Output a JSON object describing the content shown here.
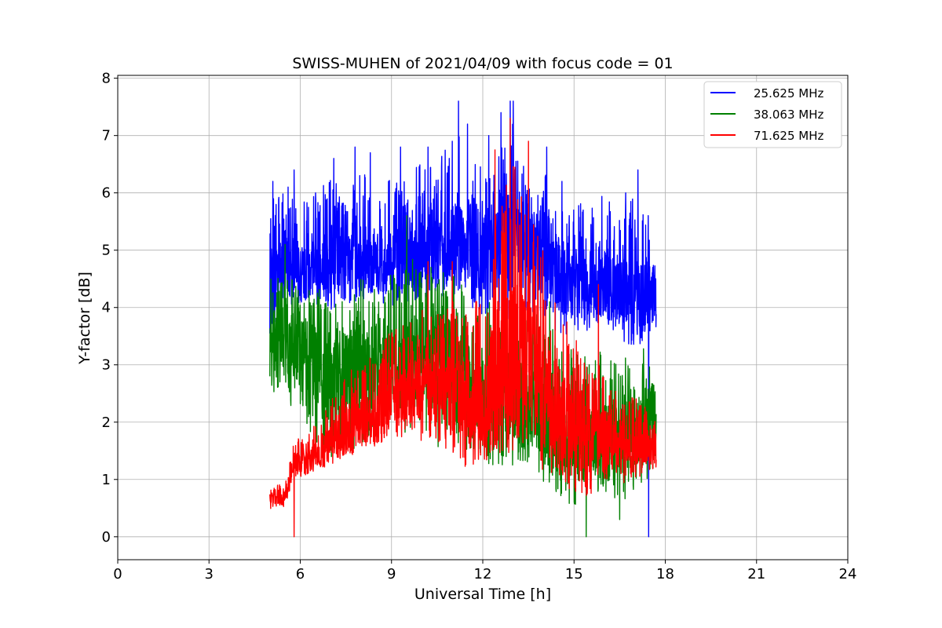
{
  "chart_data": {
    "type": "line",
    "title": "SWISS-MUHEN of 2021/04/09 with focus code = 01",
    "xlabel": "Universal Time [h]",
    "ylabel": "Y-factor [dB]",
    "xlim": [
      0,
      24
    ],
    "ylim": [
      -0.4,
      8.05
    ],
    "xticks": [
      0,
      3,
      6,
      9,
      12,
      15,
      18,
      21,
      24
    ],
    "xtick_labels": [
      "0",
      "3",
      "6",
      "9",
      "12",
      "15",
      "18",
      "21",
      "24"
    ],
    "yticks": [
      0,
      1,
      2,
      3,
      4,
      5,
      6,
      7,
      8
    ],
    "ytick_labels": [
      "0",
      "1",
      "2",
      "3",
      "4",
      "5",
      "6",
      "7",
      "8"
    ],
    "grid": true,
    "legend_position": "top-right",
    "series": [
      {
        "name": "25.625 MHz",
        "color": "#0000ff",
        "x": [
          5.0,
          5.5,
          6.0,
          6.5,
          7.0,
          7.5,
          8.0,
          8.5,
          9.0,
          9.5,
          10.0,
          10.5,
          11.0,
          11.5,
          12.0,
          12.5,
          13.0,
          13.5,
          14.0,
          14.5,
          15.0,
          15.5,
          16.0,
          16.5,
          17.0,
          17.5,
          17.7
        ],
        "y": [
          4.2,
          4.7,
          4.6,
          4.8,
          4.7,
          4.9,
          4.9,
          4.8,
          4.7,
          4.8,
          4.9,
          4.9,
          5.1,
          5.0,
          5.0,
          5.1,
          5.1,
          5.0,
          5.0,
          4.6,
          4.4,
          4.3,
          4.4,
          4.3,
          4.1,
          4.2,
          4.3
        ],
        "low": [
          3.2,
          3.9,
          3.9,
          3.9,
          3.8,
          3.9,
          4.0,
          4.0,
          3.9,
          3.9,
          4.0,
          4.0,
          4.1,
          3.9,
          3.6,
          3.3,
          3.5,
          3.8,
          3.4,
          3.3,
          3.4,
          3.4,
          3.6,
          3.3,
          3.0,
          3.2,
          3.3
        ],
        "high": [
          6.2,
          6.4,
          6.3,
          6.2,
          6.6,
          6.3,
          6.8,
          6.3,
          6.7,
          6.6,
          6.8,
          6.7,
          7.7,
          6.9,
          6.8,
          7.0,
          7.6,
          6.6,
          6.8,
          6.2,
          6.3,
          6.0,
          6.3,
          5.9,
          6.4,
          5.8,
          5.4
        ],
        "spikes": [
          [
            4.9,
            5.7
          ],
          [
            5.1,
            6.2
          ],
          [
            5.6,
            6.1
          ],
          [
            5.8,
            6.4
          ],
          [
            6.5,
            6.0
          ],
          [
            7.1,
            6.6
          ],
          [
            7.8,
            6.8
          ],
          [
            8.3,
            6.7
          ],
          [
            8.9,
            6.2
          ],
          [
            9.3,
            6.8
          ],
          [
            10.2,
            6.8
          ],
          [
            10.9,
            6.6
          ],
          [
            11.0,
            6.9
          ],
          [
            11.2,
            7.6
          ],
          [
            11.5,
            7.2
          ],
          [
            12.2,
            7.0
          ],
          [
            12.6,
            7.4
          ],
          [
            12.9,
            7.6
          ],
          [
            13.0,
            7.6
          ],
          [
            14.1,
            6.8
          ],
          [
            14.6,
            6.2
          ],
          [
            15.3,
            5.7
          ],
          [
            16.1,
            5.6
          ],
          [
            16.7,
            6.0
          ],
          [
            17.1,
            6.4
          ],
          [
            17.45,
            0.0
          ]
        ]
      },
      {
        "name": "38.063 MHz",
        "color": "#008000",
        "x": [
          5.0,
          5.5,
          6.0,
          6.5,
          7.0,
          7.5,
          8.0,
          8.5,
          9.0,
          9.5,
          10.0,
          10.5,
          11.0,
          11.5,
          12.0,
          12.5,
          13.0,
          13.5,
          14.0,
          14.5,
          15.0,
          15.5,
          16.0,
          16.5,
          17.0,
          17.5,
          17.7
        ],
        "y": [
          3.5,
          3.4,
          3.3,
          3.0,
          2.8,
          2.9,
          2.9,
          2.8,
          2.9,
          3.0,
          3.1,
          3.1,
          3.0,
          3.0,
          2.5,
          2.4,
          2.4,
          2.2,
          2.1,
          1.8,
          1.7,
          1.6,
          1.6,
          1.7,
          1.9,
          2.0,
          2.3
        ],
        "low": [
          2.4,
          2.0,
          2.0,
          1.3,
          1.0,
          1.1,
          1.4,
          1.5,
          1.7,
          1.6,
          1.4,
          1.3,
          1.2,
          1.2,
          1.1,
          1.0,
          0.9,
          1.0,
          0.7,
          0.5,
          0.3,
          0.5,
          0.5,
          0.4,
          0.5,
          0.8,
          1.2
        ],
        "high": [
          4.8,
          4.7,
          4.7,
          4.6,
          4.6,
          4.5,
          4.8,
          4.6,
          4.9,
          5.2,
          5.1,
          5.0,
          4.9,
          4.7,
          4.3,
          4.5,
          4.2,
          4.3,
          4.1,
          3.8,
          3.6,
          3.4,
          3.8,
          3.4,
          3.3,
          3.7,
          4.2
        ],
        "spikes": [
          [
            5.5,
            5.1
          ],
          [
            9.5,
            5.6
          ],
          [
            10.3,
            4.7
          ],
          [
            14.2,
            4.1
          ],
          [
            15.4,
            0.0
          ],
          [
            16.5,
            0.3
          ]
        ]
      },
      {
        "name": "71.625 MHz",
        "color": "#ff0000",
        "x": [
          5.0,
          5.5,
          5.8,
          6.0,
          6.5,
          7.0,
          7.5,
          8.0,
          8.5,
          9.0,
          9.5,
          10.0,
          10.5,
          11.0,
          11.5,
          12.0,
          12.5,
          13.0,
          13.5,
          14.0,
          14.5,
          15.0,
          15.5,
          16.0,
          16.5,
          17.0,
          17.5,
          17.7
        ],
        "y": [
          0.7,
          0.7,
          1.3,
          1.3,
          1.4,
          1.6,
          1.8,
          2.0,
          2.1,
          2.3,
          2.5,
          2.6,
          2.6,
          2.5,
          2.3,
          2.2,
          2.8,
          3.2,
          3.1,
          2.6,
          2.2,
          1.9,
          1.7,
          1.6,
          1.6,
          1.6,
          1.6,
          1.6
        ],
        "low": [
          0.4,
          0.5,
          1.0,
          1.0,
          1.1,
          1.2,
          1.3,
          1.4,
          1.5,
          1.6,
          1.6,
          1.5,
          1.4,
          1.2,
          1.0,
          1.0,
          1.1,
          1.2,
          1.1,
          0.9,
          0.8,
          0.5,
          0.5,
          0.6,
          0.8,
          0.9,
          1.0,
          1.1
        ],
        "high": [
          0.9,
          1.0,
          1.8,
          1.8,
          2.1,
          2.6,
          3.0,
          3.3,
          3.6,
          3.8,
          4.1,
          4.3,
          4.1,
          4.7,
          4.3,
          4.6,
          6.7,
          7.3,
          6.5,
          5.5,
          4.5,
          3.8,
          3.2,
          3.3,
          2.8,
          2.6,
          2.3,
          2.2
        ],
        "spikes": [
          [
            5.8,
            0.0
          ],
          [
            10.2,
            4.8
          ],
          [
            11.0,
            4.8
          ],
          [
            12.4,
            6.75
          ],
          [
            12.9,
            7.3
          ],
          [
            13.5,
            6.9
          ],
          [
            15.8,
            4.4
          ]
        ]
      }
    ]
  }
}
